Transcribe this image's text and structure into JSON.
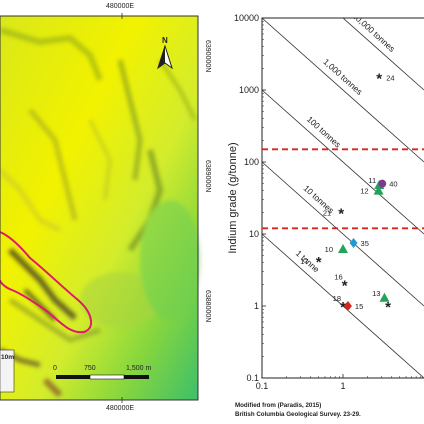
{
  "map": {
    "easting_top": "480000E",
    "easting_bottom": "480000E",
    "northing_1": "6390000N",
    "northing_2": "6389000N",
    "northing_3": "6388000N",
    "north_arrow_letter": "N",
    "scale_bar": {
      "ticks": [
        "0",
        "750",
        "1,500 m"
      ]
    },
    "legend_fragment": "10m",
    "colors": {
      "outline": "#e0186c",
      "yellow": "#f2f200",
      "green": "#3dbf6a"
    }
  },
  "chart_data": {
    "type": "scatter",
    "title": "",
    "ylabel": "Indium grade (g/tonne)",
    "xlabel": "",
    "x_scale": "log",
    "y_scale": "log",
    "xlim": [
      0.1,
      10
    ],
    "ylim": [
      0.1,
      10000
    ],
    "x_ticks": [
      "0.1",
      "1"
    ],
    "y_ticks": [
      "10000",
      "1000",
      "100",
      "10",
      "1",
      "0.1"
    ],
    "tonnage_lines": [
      {
        "label": "1 tonne",
        "tonnes": 1
      },
      {
        "label": "10 tonnes",
        "tonnes": 10
      },
      {
        "label": "100 tonnes",
        "tonnes": 100
      },
      {
        "label": "1,000 tonnes",
        "tonnes": 1000
      },
      {
        "label": "10,000 tonnes",
        "tonnes": 10000
      }
    ],
    "cutoff_lines": [
      150,
      12
    ],
    "points": [
      {
        "label": "24",
        "x": 2.8,
        "y": 1500,
        "marker": "star",
        "color": "#222222"
      },
      {
        "label": "11",
        "x": 2.8,
        "y": 48,
        "marker": "triangle",
        "color": "#21a35a"
      },
      {
        "label": "40",
        "x": 3.05,
        "y": 50,
        "marker": "circle",
        "color": "#7a3d8c"
      },
      {
        "label": "12",
        "x": 2.75,
        "y": 40,
        "marker": "triangle",
        "color": "#21a35a"
      },
      {
        "label": "21",
        "x": 0.95,
        "y": 20,
        "marker": "star",
        "color": "#222222"
      },
      {
        "label": "35",
        "x": 1.35,
        "y": 7.5,
        "marker": "diamond",
        "color": "#1f9ad6"
      },
      {
        "label": "10",
        "x": 1.0,
        "y": 6.2,
        "marker": "triangle",
        "color": "#21a35a"
      },
      {
        "label": "17",
        "x": 0.5,
        "y": 4.2,
        "marker": "star",
        "color": "#222222"
      },
      {
        "label": "16",
        "x": 1.05,
        "y": 2.0,
        "marker": "star",
        "color": "#222222"
      },
      {
        "label": "13",
        "x": 3.25,
        "y": 1.3,
        "marker": "triangle",
        "color": "#21a35a"
      },
      {
        "label": "18",
        "x": 1.0,
        "y": 1.0,
        "marker": "star",
        "color": "#222222"
      },
      {
        "label": "15",
        "x": 1.15,
        "y": 1.0,
        "marker": "diamond",
        "color": "#d9231d"
      },
      {
        "label": "",
        "x": 3.6,
        "y": 1.0,
        "marker": "star",
        "color": "#222222"
      }
    ],
    "footer": [
      "Modified from (Paradis, 2015)",
      "British Columbia Geological Survey. 23-29."
    ]
  }
}
